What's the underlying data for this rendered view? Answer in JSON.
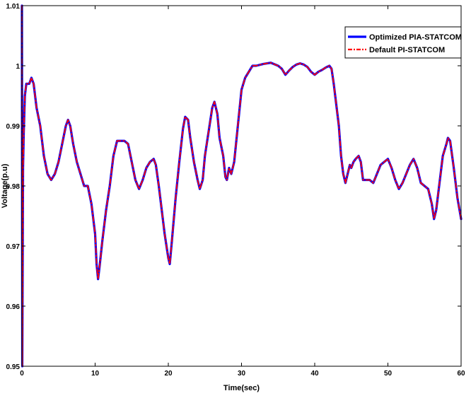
{
  "chart_data": {
    "type": "line",
    "xlabel": "Time(sec)",
    "ylabel": "Voltage(p.u)",
    "xlim": [
      0,
      60
    ],
    "ylim": [
      0.95,
      1.01
    ],
    "xticks": [
      0,
      10,
      20,
      30,
      40,
      50,
      60
    ],
    "yticks": [
      0.95,
      0.96,
      0.97,
      0.98,
      0.99,
      1,
      1.01
    ],
    "xtick_labels": [
      "0",
      "10",
      "20",
      "30",
      "40",
      "50",
      "60"
    ],
    "ytick_labels": [
      "0.95",
      "0.96",
      "0.97",
      "0.98",
      "0.99",
      "1",
      "1.01"
    ],
    "grid": false,
    "legend_position": "top-right",
    "series": [
      {
        "name": "Optimized PIA-STATCOM",
        "color": "#0000ff",
        "style": "solid",
        "x": [
          0,
          0.05,
          0.15,
          0.25,
          0.4,
          0.6,
          0.8,
          1.0,
          1.3,
          1.6,
          2.0,
          2.5,
          3.0,
          3.5,
          4.0,
          4.5,
          5.0,
          5.5,
          6.0,
          6.3,
          6.6,
          7.0,
          7.5,
          8.0,
          8.5,
          9.0,
          9.5,
          10.0,
          10.2,
          10.4,
          10.6,
          11.0,
          11.5,
          12.0,
          12.5,
          13.0,
          13.5,
          14.0,
          14.5,
          15.0,
          15.5,
          16.0,
          16.5,
          17.0,
          17.5,
          18.0,
          18.3,
          18.7,
          19.0,
          19.5,
          20.0,
          20.2,
          20.5,
          21.0,
          21.5,
          22.0,
          22.3,
          22.7,
          23.0,
          23.5,
          24.0,
          24.3,
          24.7,
          25.0,
          25.5,
          26.0,
          26.3,
          26.7,
          27.0,
          27.5,
          27.8,
          28.0,
          28.3,
          28.6,
          29.0,
          29.5,
          30.0,
          30.5,
          31.0,
          31.5,
          32.0,
          33.0,
          34.0,
          35.0,
          35.5,
          36.0,
          36.5,
          37.0,
          37.5,
          38.0,
          38.5,
          39.0,
          39.5,
          40.0,
          40.5,
          41.0,
          41.5,
          42.0,
          42.3,
          42.6,
          43.0,
          43.3,
          43.6,
          43.9,
          44.2,
          44.5,
          44.8,
          45.0,
          45.3,
          45.6,
          46.0,
          46.3,
          46.6,
          47.0,
          47.5,
          48.0,
          48.5,
          49.0,
          49.5,
          50.0,
          50.5,
          51.0,
          51.5,
          52.0,
          52.5,
          53.0,
          53.5,
          54.0,
          54.5,
          55.0,
          55.5,
          56.0,
          56.3,
          56.6,
          57.0,
          57.5,
          58.0,
          58.2,
          58.5,
          59.0,
          59.5,
          60.0
        ],
        "y": [
          1.01,
          0.95,
          0.983,
          0.989,
          0.995,
          0.997,
          0.997,
          0.997,
          0.998,
          0.997,
          0.993,
          0.99,
          0.985,
          0.982,
          0.981,
          0.982,
          0.984,
          0.987,
          0.99,
          0.991,
          0.99,
          0.987,
          0.984,
          0.982,
          0.98,
          0.98,
          0.977,
          0.972,
          0.967,
          0.9645,
          0.9665,
          0.971,
          0.976,
          0.98,
          0.985,
          0.9875,
          0.9875,
          0.9875,
          0.987,
          0.984,
          0.981,
          0.9795,
          0.981,
          0.983,
          0.984,
          0.9845,
          0.9835,
          0.98,
          0.977,
          0.972,
          0.968,
          0.967,
          0.971,
          0.978,
          0.984,
          0.9895,
          0.9915,
          0.991,
          0.988,
          0.984,
          0.981,
          0.9795,
          0.981,
          0.985,
          0.989,
          0.993,
          0.994,
          0.992,
          0.988,
          0.985,
          0.9815,
          0.981,
          0.983,
          0.982,
          0.984,
          0.99,
          0.996,
          0.998,
          0.999,
          1.0,
          1.0,
          1.0003,
          1.0005,
          1.0,
          0.9995,
          0.9985,
          0.9992,
          0.9998,
          1.0002,
          1.0004,
          1.0002,
          0.9998,
          0.999,
          0.9985,
          0.999,
          0.9993,
          0.9997,
          1.0,
          0.9995,
          0.997,
          0.993,
          0.99,
          0.985,
          0.982,
          0.9805,
          0.982,
          0.9835,
          0.983,
          0.984,
          0.9845,
          0.985,
          0.984,
          0.981,
          0.981,
          0.981,
          0.9805,
          0.982,
          0.9835,
          0.984,
          0.9845,
          0.983,
          0.981,
          0.9795,
          0.9805,
          0.982,
          0.9835,
          0.9845,
          0.983,
          0.9805,
          0.98,
          0.9795,
          0.977,
          0.9745,
          0.976,
          0.98,
          0.985,
          0.987,
          0.988,
          0.9875,
          0.983,
          0.978,
          0.9745
        ]
      },
      {
        "name": "Default PI-STATCOM",
        "color": "#ff0000",
        "style": "dash-dot",
        "x": [
          0,
          0.05,
          0.15,
          0.25,
          0.4,
          0.6,
          0.8,
          1.0,
          1.3,
          1.6,
          2.0,
          2.5,
          3.0,
          3.5,
          4.0,
          4.5,
          5.0,
          5.5,
          6.0,
          6.3,
          6.6,
          7.0,
          7.5,
          8.0,
          8.5,
          9.0,
          9.5,
          10.0,
          10.2,
          10.4,
          10.6,
          11.0,
          11.5,
          12.0,
          12.5,
          13.0,
          13.5,
          14.0,
          14.5,
          15.0,
          15.5,
          16.0,
          16.5,
          17.0,
          17.5,
          18.0,
          18.3,
          18.7,
          19.0,
          19.5,
          20.0,
          20.2,
          20.5,
          21.0,
          21.5,
          22.0,
          22.3,
          22.7,
          23.0,
          23.5,
          24.0,
          24.3,
          24.7,
          25.0,
          25.5,
          26.0,
          26.3,
          26.7,
          27.0,
          27.5,
          27.8,
          28.0,
          28.3,
          28.6,
          29.0,
          29.5,
          30.0,
          30.5,
          31.0,
          31.5,
          32.0,
          33.0,
          34.0,
          35.0,
          35.5,
          36.0,
          36.5,
          37.0,
          37.5,
          38.0,
          38.5,
          39.0,
          39.5,
          40.0,
          40.5,
          41.0,
          41.5,
          42.0,
          42.3,
          42.6,
          43.0,
          43.3,
          43.6,
          43.9,
          44.2,
          44.5,
          44.8,
          45.0,
          45.3,
          45.6,
          46.0,
          46.3,
          46.6,
          47.0,
          47.5,
          48.0,
          48.5,
          49.0,
          49.5,
          50.0,
          50.5,
          51.0,
          51.5,
          52.0,
          52.5,
          53.0,
          53.5,
          54.0,
          54.5,
          55.0,
          55.5,
          56.0,
          56.3,
          56.6,
          57.0,
          57.5,
          58.0,
          58.2,
          58.5,
          59.0,
          59.5,
          60.0
        ],
        "y": [
          1.01,
          0.95,
          0.983,
          0.989,
          0.995,
          0.997,
          0.997,
          0.997,
          0.998,
          0.997,
          0.993,
          0.99,
          0.985,
          0.982,
          0.981,
          0.982,
          0.984,
          0.987,
          0.99,
          0.991,
          0.99,
          0.987,
          0.984,
          0.982,
          0.98,
          0.98,
          0.977,
          0.972,
          0.967,
          0.9645,
          0.9665,
          0.971,
          0.976,
          0.98,
          0.985,
          0.9875,
          0.9875,
          0.9875,
          0.987,
          0.984,
          0.981,
          0.9795,
          0.981,
          0.983,
          0.984,
          0.9845,
          0.9835,
          0.98,
          0.977,
          0.972,
          0.968,
          0.967,
          0.971,
          0.978,
          0.984,
          0.9895,
          0.9915,
          0.991,
          0.988,
          0.984,
          0.981,
          0.9795,
          0.981,
          0.985,
          0.989,
          0.993,
          0.994,
          0.992,
          0.988,
          0.985,
          0.9815,
          0.981,
          0.983,
          0.982,
          0.984,
          0.99,
          0.996,
          0.998,
          0.999,
          1.0,
          1.0,
          1.0003,
          1.0005,
          1.0,
          0.9995,
          0.9985,
          0.9992,
          0.9998,
          1.0002,
          1.0004,
          1.0002,
          0.9998,
          0.999,
          0.9985,
          0.999,
          0.9993,
          0.9997,
          1.0,
          0.9995,
          0.997,
          0.993,
          0.99,
          0.985,
          0.982,
          0.9805,
          0.982,
          0.9835,
          0.983,
          0.984,
          0.9845,
          0.985,
          0.984,
          0.981,
          0.981,
          0.981,
          0.9805,
          0.982,
          0.9835,
          0.984,
          0.9845,
          0.983,
          0.981,
          0.9795,
          0.9805,
          0.982,
          0.9835,
          0.9845,
          0.983,
          0.9805,
          0.98,
          0.9795,
          0.977,
          0.9745,
          0.976,
          0.98,
          0.985,
          0.987,
          0.988,
          0.9875,
          0.983,
          0.978,
          0.9745
        ]
      }
    ]
  }
}
